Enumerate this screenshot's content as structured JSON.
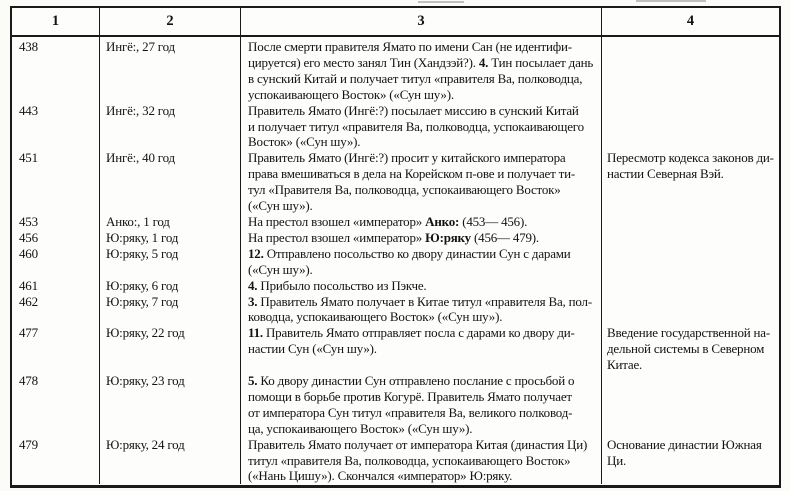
{
  "colors": {
    "background": "#fbfbf8",
    "paper": "#fdfdfb",
    "border": "#1a1a1a",
    "text": "#131313"
  },
  "table": {
    "headers": [
      "1",
      "2",
      "3",
      "4"
    ],
    "rows": [
      {
        "year": "438",
        "ruler": "Ингё:, 27 год",
        "event_lines": [
          [
            {
              "t": "После смерти правителя Ямато по имени Сан (не идентифи-",
              "b": false
            }
          ],
          [
            {
              "t": "цируется) его место занял Тин (Хандзэй?). ",
              "b": false
            },
            {
              "t": "4.",
              "b": true
            },
            {
              "t": " Тин посылает дань",
              "b": false
            }
          ],
          [
            {
              "t": "в сунский Китай и получает титул «правителя Ва, полководца,",
              "b": false
            }
          ],
          [
            {
              "t": "успокаивающего Восток» («Сун шу»).",
              "b": false
            }
          ]
        ],
        "note_lines": []
      },
      {
        "year": "443",
        "ruler": "Ингё:, 32 год",
        "event_lines": [
          [
            {
              "t": "Правитель Ямато (Ингё:?) посылает миссию в сунский Китай",
              "b": false
            }
          ],
          [
            {
              "t": "и получает титул «правителя Ва, полководца, успокаивающего",
              "b": false
            }
          ],
          [
            {
              "t": "Восток» («Сун шу»).",
              "b": false
            }
          ]
        ],
        "note_lines": []
      },
      {
        "year": "451",
        "ruler": "Ингё:, 40 год",
        "event_lines": [
          [
            {
              "t": "Правитель Ямато (Ингё:?) просит у китайского императора",
              "b": false
            }
          ],
          [
            {
              "t": "права вмешиваться в дела на Корейском п-ове и получает ти-",
              "b": false
            }
          ],
          [
            {
              "t": "тул «Правителя Ва, полководца, успокаивающего Восток»",
              "b": false
            }
          ],
          [
            {
              "t": "(«Сун шу»).",
              "b": false
            }
          ]
        ],
        "note_lines": [
          "Пересмотр кодекса законов ди-",
          "настии Северная Вэй."
        ]
      },
      {
        "year": "453",
        "ruler": "Анко:, 1 год",
        "event_lines": [
          [
            {
              "t": "На престол взошел «император» ",
              "b": false
            },
            {
              "t": "Анко:",
              "b": true
            },
            {
              "t": " (453— 456).",
              "b": false
            }
          ]
        ],
        "note_lines": []
      },
      {
        "year": "456",
        "ruler": "Ю:ряку, 1 год",
        "event_lines": [
          [
            {
              "t": "На престол взошел «император» ",
              "b": false
            },
            {
              "t": "Ю:ряку",
              "b": true
            },
            {
              "t": " (456— 479).",
              "b": false
            }
          ]
        ],
        "note_lines": []
      },
      {
        "year": "460",
        "ruler": "Ю:ряку, 5 год",
        "event_lines": [
          [
            {
              "t": "12.",
              "b": true
            },
            {
              "t": " Отправлено посольство ко двору династии Сун с дарами",
              "b": false
            }
          ],
          [
            {
              "t": "(«Сун шу»).",
              "b": false
            }
          ]
        ],
        "note_lines": []
      },
      {
        "year": "461",
        "ruler": "Ю:ряку, 6 год",
        "event_lines": [
          [
            {
              "t": "4.",
              "b": true
            },
            {
              "t": " Прибыло посольство из Пэкче.",
              "b": false
            }
          ]
        ],
        "note_lines": []
      },
      {
        "year": "462",
        "ruler": "Ю:ряку, 7 год",
        "event_lines": [
          [
            {
              "t": "3.",
              "b": true
            },
            {
              "t": " Правитель Ямато получает в Китае титул «правителя Ва, пол-",
              "b": false
            }
          ],
          [
            {
              "t": "ководца, успокаивающего Восток» («Сун шу»).",
              "b": false
            }
          ]
        ],
        "note_lines": []
      },
      {
        "year": "477",
        "ruler": "Ю:ряку, 22 год",
        "event_lines": [
          [
            {
              "t": "11.",
              "b": true
            },
            {
              "t": " Правитель Ямато отправляет посла с дарами ко двору ди-",
              "b": false
            }
          ],
          [
            {
              "t": "настии Сун («Сун шу»).",
              "b": false
            }
          ]
        ],
        "note_lines": [
          "Введение государственной на-",
          "дельной системы в Северном",
          "Китае."
        ]
      },
      {
        "year": "478",
        "ruler": "Ю:ряку, 23 год",
        "event_lines": [
          [
            {
              "t": "5.",
              "b": true
            },
            {
              "t": " Ко двору династии Сун отправлено послание с просьбой о",
              "b": false
            }
          ],
          [
            {
              "t": "помощи в борьбе против Когурё. Правитель Ямато получает",
              "b": false
            }
          ],
          [
            {
              "t": "от императора Сун титул «правителя Ва, великого полковод-",
              "b": false
            }
          ],
          [
            {
              "t": "ца, успокаивающего Восток» («Сун шу»).",
              "b": false
            }
          ]
        ],
        "note_lines": []
      },
      {
        "year": "479",
        "ruler": "Ю:ряку, 24 год",
        "event_lines": [
          [
            {
              "t": "Правитель Ямато получает от императора Китая (династия Ци)",
              "b": false
            }
          ],
          [
            {
              "t": "титул «правителя Ва, полководца, успокаивающего Восток»",
              "b": false
            }
          ],
          [
            {
              "t": "(«Нань Цишу»). Скончался «император» Ю:ряку.",
              "b": false
            }
          ]
        ],
        "note_lines": [
          "Основание династии Южная",
          "Ци."
        ]
      }
    ]
  }
}
